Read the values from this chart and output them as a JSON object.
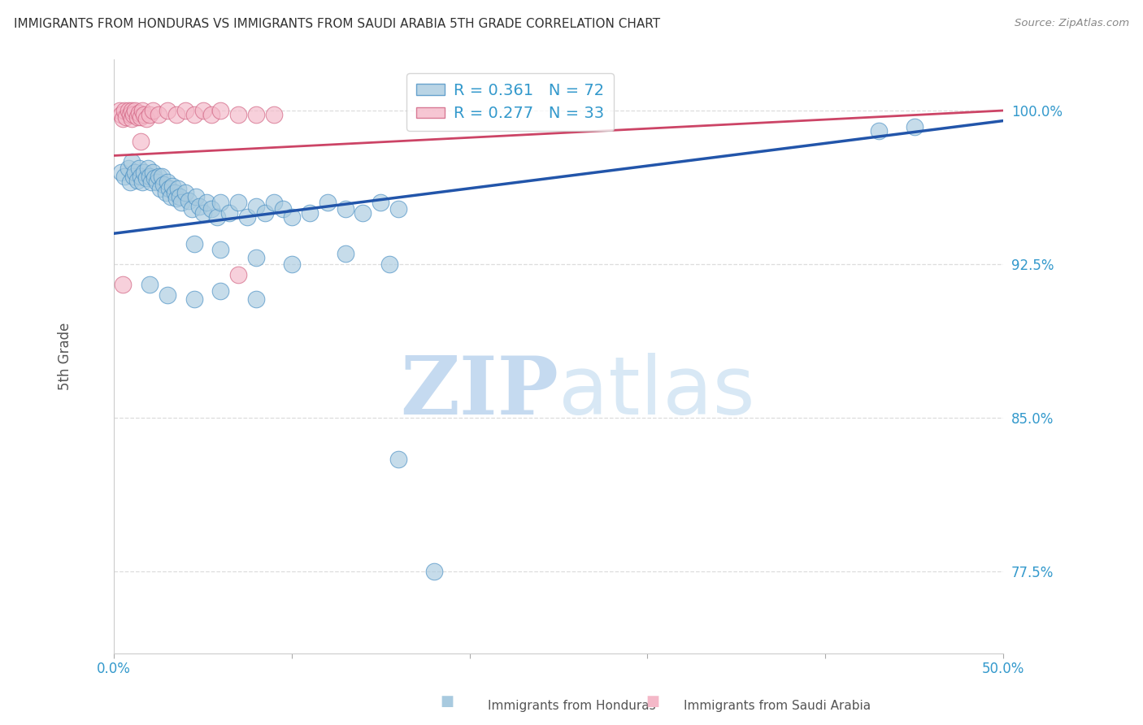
{
  "title": "IMMIGRANTS FROM HONDURAS VS IMMIGRANTS FROM SAUDI ARABIA 5TH GRADE CORRELATION CHART",
  "source": "Source: ZipAtlas.com",
  "ylabel": "5th Grade",
  "ytick_labels": [
    "77.5%",
    "85.0%",
    "92.5%",
    "100.0%"
  ],
  "ytick_values": [
    0.775,
    0.85,
    0.925,
    1.0
  ],
  "xlim": [
    0.0,
    0.5
  ],
  "ylim": [
    0.735,
    1.025
  ],
  "legend_blue_R": "R = 0.361",
  "legend_blue_N": "N = 72",
  "legend_pink_R": "R = 0.277",
  "legend_pink_N": "N = 33",
  "blue_scatter_color": "#a8cadf",
  "blue_edge_color": "#4a90c4",
  "pink_scatter_color": "#f4b8c8",
  "pink_edge_color": "#d06080",
  "blue_line_color": "#2255aa",
  "pink_line_color": "#cc4466",
  "blue_trend_x": [
    0.0,
    0.5
  ],
  "blue_trend_y": [
    0.94,
    0.995
  ],
  "pink_trend_x": [
    0.0,
    0.5
  ],
  "pink_trend_y": [
    0.978,
    1.0
  ],
  "blue_scatter": [
    [
      0.004,
      0.97
    ],
    [
      0.006,
      0.968
    ],
    [
      0.008,
      0.972
    ],
    [
      0.009,
      0.965
    ],
    [
      0.01,
      0.975
    ],
    [
      0.011,
      0.968
    ],
    [
      0.012,
      0.97
    ],
    [
      0.013,
      0.966
    ],
    [
      0.014,
      0.972
    ],
    [
      0.015,
      0.968
    ],
    [
      0.016,
      0.965
    ],
    [
      0.017,
      0.97
    ],
    [
      0.018,
      0.967
    ],
    [
      0.019,
      0.972
    ],
    [
      0.02,
      0.968
    ],
    [
      0.021,
      0.965
    ],
    [
      0.022,
      0.97
    ],
    [
      0.023,
      0.967
    ],
    [
      0.024,
      0.965
    ],
    [
      0.025,
      0.968
    ],
    [
      0.026,
      0.962
    ],
    [
      0.027,
      0.968
    ],
    [
      0.028,
      0.964
    ],
    [
      0.029,
      0.96
    ],
    [
      0.03,
      0.965
    ],
    [
      0.031,
      0.962
    ],
    [
      0.032,
      0.958
    ],
    [
      0.033,
      0.963
    ],
    [
      0.034,
      0.96
    ],
    [
      0.035,
      0.957
    ],
    [
      0.036,
      0.962
    ],
    [
      0.037,
      0.958
    ],
    [
      0.038,
      0.955
    ],
    [
      0.04,
      0.96
    ],
    [
      0.042,
      0.956
    ],
    [
      0.044,
      0.952
    ],
    [
      0.046,
      0.958
    ],
    [
      0.048,
      0.953
    ],
    [
      0.05,
      0.95
    ],
    [
      0.052,
      0.955
    ],
    [
      0.055,
      0.952
    ],
    [
      0.058,
      0.948
    ],
    [
      0.06,
      0.955
    ],
    [
      0.065,
      0.95
    ],
    [
      0.07,
      0.955
    ],
    [
      0.075,
      0.948
    ],
    [
      0.08,
      0.953
    ],
    [
      0.085,
      0.95
    ],
    [
      0.09,
      0.955
    ],
    [
      0.095,
      0.952
    ],
    [
      0.1,
      0.948
    ],
    [
      0.11,
      0.95
    ],
    [
      0.12,
      0.955
    ],
    [
      0.13,
      0.952
    ],
    [
      0.14,
      0.95
    ],
    [
      0.15,
      0.955
    ],
    [
      0.16,
      0.952
    ],
    [
      0.045,
      0.935
    ],
    [
      0.06,
      0.932
    ],
    [
      0.08,
      0.928
    ],
    [
      0.1,
      0.925
    ],
    [
      0.13,
      0.93
    ],
    [
      0.155,
      0.925
    ],
    [
      0.02,
      0.915
    ],
    [
      0.03,
      0.91
    ],
    [
      0.045,
      0.908
    ],
    [
      0.06,
      0.912
    ],
    [
      0.08,
      0.908
    ],
    [
      0.16,
      0.83
    ],
    [
      0.18,
      0.775
    ],
    [
      0.43,
      0.99
    ],
    [
      0.45,
      0.992
    ]
  ],
  "pink_scatter": [
    [
      0.003,
      1.0
    ],
    [
      0.004,
      0.998
    ],
    [
      0.005,
      0.996
    ],
    [
      0.006,
      1.0
    ],
    [
      0.007,
      0.997
    ],
    [
      0.008,
      1.0
    ],
    [
      0.009,
      0.998
    ],
    [
      0.01,
      0.996
    ],
    [
      0.01,
      1.0
    ],
    [
      0.011,
      0.998
    ],
    [
      0.012,
      1.0
    ],
    [
      0.013,
      0.997
    ],
    [
      0.014,
      0.999
    ],
    [
      0.015,
      0.997
    ],
    [
      0.016,
      1.0
    ],
    [
      0.017,
      0.998
    ],
    [
      0.018,
      0.996
    ],
    [
      0.02,
      0.998
    ],
    [
      0.022,
      1.0
    ],
    [
      0.025,
      0.998
    ],
    [
      0.03,
      1.0
    ],
    [
      0.035,
      0.998
    ],
    [
      0.04,
      1.0
    ],
    [
      0.045,
      0.998
    ],
    [
      0.05,
      1.0
    ],
    [
      0.055,
      0.998
    ],
    [
      0.06,
      1.0
    ],
    [
      0.07,
      0.998
    ],
    [
      0.08,
      0.998
    ],
    [
      0.09,
      0.998
    ],
    [
      0.015,
      0.985
    ],
    [
      0.07,
      0.92
    ],
    [
      0.005,
      0.915
    ]
  ],
  "background_color": "#ffffff",
  "grid_color": "#dddddd",
  "title_color": "#333333",
  "ytick_color": "#3399cc",
  "xtick_color": "#3399cc",
  "ylabel_color": "#555555",
  "watermark_zip": "ZIP",
  "watermark_atlas": "atlas",
  "watermark_color": "#ddeeff"
}
